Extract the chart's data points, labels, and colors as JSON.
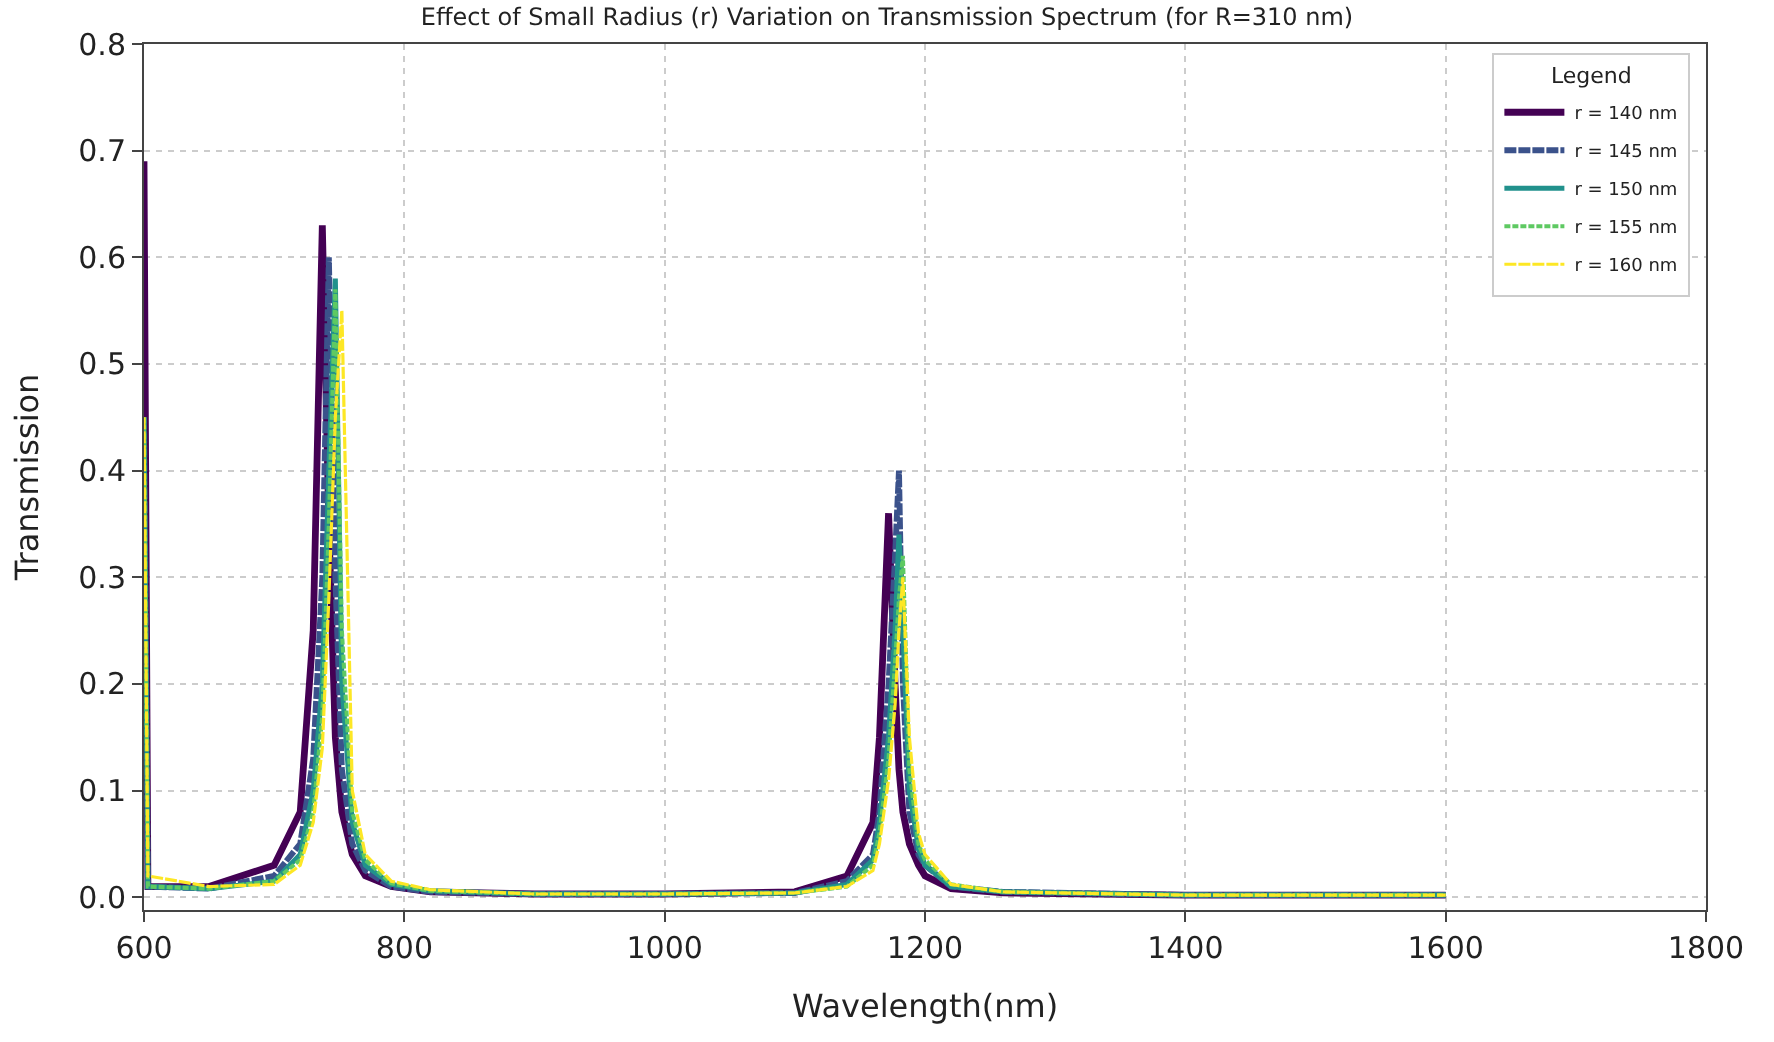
{
  "chart_data": {
    "type": "line",
    "title": "Effect of Small Radius (r) Variation on Transmission Spectrum (for R=310 nm)",
    "xlabel": "Wavelength(nm)",
    "ylabel": "Transmission",
    "legend_title": "Legend",
    "x": [
      600,
      603,
      650,
      700,
      720,
      730,
      737,
      742,
      747,
      752,
      760,
      770,
      790,
      820,
      900,
      1000,
      1100,
      1140,
      1160,
      1165,
      1172,
      1177,
      1180,
      1183,
      1188,
      1195,
      1200,
      1220,
      1260,
      1400,
      1600
    ],
    "series": [
      {
        "name": "r = 140 nm",
        "color": "#440154",
        "line_style": "solid",
        "values": [
          0.69,
          0.01,
          0.01,
          0.03,
          0.08,
          0.25,
          0.63,
          0.35,
          0.15,
          0.08,
          0.04,
          0.02,
          0.01,
          0.005,
          0.003,
          0.003,
          0.005,
          0.02,
          0.07,
          0.15,
          0.36,
          0.2,
          0.12,
          0.08,
          0.05,
          0.03,
          0.02,
          0.008,
          0.004,
          0.002,
          0.002
        ]
      },
      {
        "name": "r = 145 nm",
        "color": "#3b528b",
        "line_style": "dashed",
        "values": [
          0.45,
          0.01,
          0.008,
          0.02,
          0.05,
          0.13,
          0.3,
          0.6,
          0.3,
          0.12,
          0.05,
          0.025,
          0.01,
          0.005,
          0.003,
          0.003,
          0.004,
          0.015,
          0.04,
          0.08,
          0.2,
          0.32,
          0.4,
          0.2,
          0.08,
          0.04,
          0.03,
          0.01,
          0.005,
          0.002,
          0.002
        ]
      },
      {
        "name": "r = 150 nm",
        "color": "#21918c",
        "line_style": "solid",
        "values": [
          0.45,
          0.01,
          0.008,
          0.015,
          0.04,
          0.1,
          0.2,
          0.4,
          0.58,
          0.2,
          0.07,
          0.03,
          0.012,
          0.006,
          0.003,
          0.003,
          0.004,
          0.012,
          0.035,
          0.07,
          0.15,
          0.25,
          0.34,
          0.25,
          0.1,
          0.045,
          0.03,
          0.01,
          0.005,
          0.002,
          0.002
        ]
      },
      {
        "name": "r = 155 nm",
        "color": "#5ec962",
        "line_style": "dotted",
        "values": [
          0.45,
          0.01,
          0.008,
          0.015,
          0.035,
          0.08,
          0.17,
          0.35,
          0.57,
          0.25,
          0.08,
          0.035,
          0.013,
          0.006,
          0.003,
          0.003,
          0.004,
          0.01,
          0.03,
          0.06,
          0.13,
          0.22,
          0.28,
          0.32,
          0.12,
          0.05,
          0.035,
          0.012,
          0.005,
          0.002,
          0.002
        ]
      },
      {
        "name": "r = 160 nm",
        "color": "#fde725",
        "line_style": "dashed",
        "values": [
          0.45,
          0.02,
          0.01,
          0.012,
          0.03,
          0.07,
          0.14,
          0.28,
          0.45,
          0.55,
          0.1,
          0.04,
          0.015,
          0.007,
          0.003,
          0.003,
          0.004,
          0.01,
          0.025,
          0.05,
          0.11,
          0.18,
          0.25,
          0.3,
          0.15,
          0.06,
          0.04,
          0.012,
          0.005,
          0.002,
          0.002
        ]
      }
    ],
    "xlim": [
      600,
      1800
    ],
    "xticks": [
      600,
      800,
      1000,
      1200,
      1400,
      1600,
      1800
    ],
    "ylim": [
      -0.012,
      0.8
    ],
    "yticks": [
      {
        "value": 0,
        "label": "0.0"
      },
      0.1,
      0.2,
      0.3,
      0.4,
      0.5,
      0.6,
      0.7,
      0.8
    ],
    "grid": true,
    "legend": "top right"
  }
}
